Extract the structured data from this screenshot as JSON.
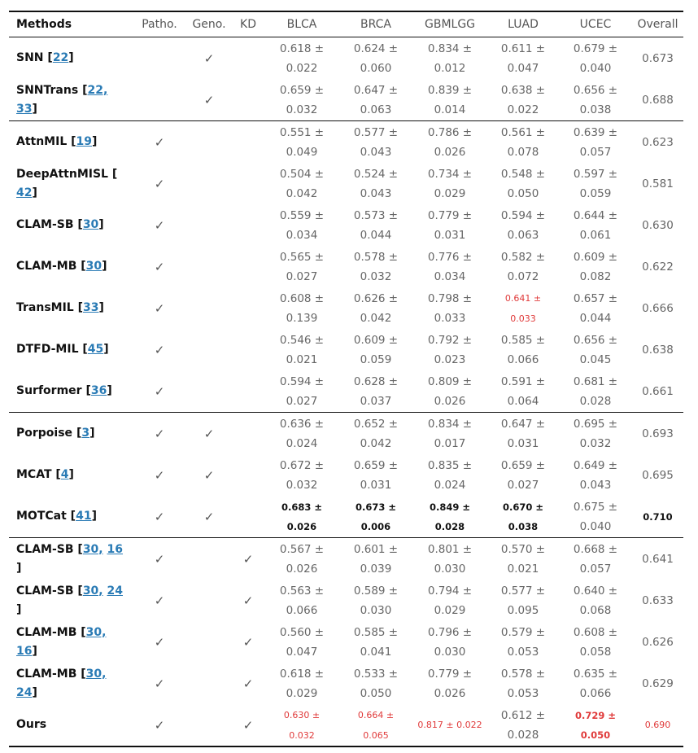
{
  "headers": [
    "Methods",
    "Patho.",
    "Geno.",
    "KD",
    "BLCA",
    "BRCA",
    "GBMLGG",
    "LUAD",
    "UCEC",
    "Overall"
  ],
  "check_mark": "✓",
  "rows": [
    {
      "name": "SNN",
      "refs": [
        "22"
      ],
      "cells": [
        "0.618 ±",
        "0.022",
        "0.624 ±",
        "0.060",
        "0.834 ±",
        "0.012",
        "0.611 ±",
        "0.047",
        "0.679 ±",
        "0.040"
      ],
      "overall": "0.673"
    },
    {
      "name": "SNNTrans",
      "refs": [
        "22,",
        "33"
      ],
      "cells": [
        "0.659 ±",
        "0.032",
        "0.647 ±",
        "0.063",
        "0.839 ±",
        "0.014",
        "0.638 ±",
        "0.022",
        "0.656 ±",
        "0.038"
      ],
      "overall": "0.688"
    },
    {
      "name": "AttnMIL",
      "refs": [
        "19"
      ],
      "cells": [
        "0.551 ±",
        "0.049",
        "0.577 ±",
        "0.043",
        "0.786 ±",
        "0.026",
        "0.561 ±",
        "0.078",
        "0.639 ±",
        "0.057"
      ],
      "overall": "0.623"
    },
    {
      "name": "DeepAttnMISL [",
      "refs": [
        "42"
      ],
      "cells": [
        "0.504 ±",
        "0.042",
        "0.524 ±",
        "0.043",
        "0.734 ±",
        "0.029",
        "0.548 ±",
        "0.050",
        "0.597 ±",
        "0.059"
      ],
      "overall": "0.581"
    },
    {
      "name": "CLAM-SB",
      "refs": [
        "30"
      ],
      "cells": [
        "0.559 ±",
        "0.034",
        "0.573 ±",
        "0.044",
        "0.779 ±",
        "0.031",
        "0.594 ±",
        "0.063",
        "0.644 ±",
        "0.061"
      ],
      "overall": "0.630"
    },
    {
      "name": "CLAM-MB",
      "refs": [
        "30"
      ],
      "cells": [
        "0.565 ±",
        "0.027",
        "0.578 ±",
        "0.032",
        "0.776 ±",
        "0.034",
        "0.582 ±",
        "0.072",
        "0.609 ±",
        "0.082"
      ],
      "overall": "0.622"
    },
    {
      "name": "TransMIL",
      "refs": [
        "33"
      ],
      "cells": [
        "0.608 ±",
        "0.139",
        "0.626 ±",
        "0.042",
        "0.798 ±",
        "0.033",
        "0.641 ±",
        "0.033",
        "0.657 ±",
        "0.044"
      ],
      "overall": "0.666"
    },
    {
      "name": "DTFD-MIL",
      "refs": [
        "45"
      ],
      "cells": [
        "0.546 ±",
        "0.021",
        "0.609 ±",
        "0.059",
        "0.792 ±",
        "0.023",
        "0.585 ±",
        "0.066",
        "0.656 ±",
        "0.045"
      ],
      "overall": "0.638"
    },
    {
      "name": "Surformer",
      "refs": [
        "36"
      ],
      "cells": [
        "0.594 ±",
        "0.027",
        "0.628 ±",
        "0.037",
        "0.809 ±",
        "0.026",
        "0.591 ±",
        "0.064",
        "0.681 ±",
        "0.028"
      ],
      "overall": "0.661"
    },
    {
      "name": "Porpoise",
      "refs": [
        "3"
      ],
      "cells": [
        "0.636 ±",
        "0.024",
        "0.652 ±",
        "0.042",
        "0.834 ±",
        "0.017",
        "0.647 ±",
        "0.031",
        "0.695 ±",
        "0.032"
      ],
      "overall": "0.693"
    },
    {
      "name": "MCAT",
      "refs": [
        "4"
      ],
      "cells": [
        "0.672 ±",
        "0.032",
        "0.659 ±",
        "0.031",
        "0.835 ±",
        "0.024",
        "0.659 ±",
        "0.027",
        "0.649 ±",
        "0.043"
      ],
      "overall": "0.695"
    },
    {
      "name": "MOTCat",
      "refs": [
        "41"
      ],
      "cells": [
        "0.683 ±",
        "0.026",
        "0.673 ±",
        "0.006",
        "0.849 ±",
        "0.028",
        "0.670 ±",
        "0.038",
        "0.675 ±",
        "0.040"
      ],
      "overall": "0.710"
    },
    {
      "name": "CLAM-SB",
      "refs": [
        "30,",
        "16"
      ],
      "cells": [
        "0.567 ±",
        "0.026",
        "0.601 ±",
        "0.039",
        "0.801 ±",
        "0.030",
        "0.570 ±",
        "0.021",
        "0.668 ±",
        "0.057"
      ],
      "overall": "0.641"
    },
    {
      "name": "CLAM-SB",
      "refs": [
        "30,",
        "24"
      ],
      "cells": [
        "0.563 ±",
        "0.066",
        "0.589 ±",
        "0.030",
        "0.794 ±",
        "0.029",
        "0.577 ±",
        "0.095",
        "0.640 ±",
        "0.068"
      ],
      "overall": "0.633"
    },
    {
      "name": "CLAM-MB",
      "refs": [
        "30,",
        "16"
      ],
      "cells": [
        "0.560 ±",
        "0.047",
        "0.585 ±",
        "0.041",
        "0.796 ±",
        "0.030",
        "0.579 ±",
        "0.053",
        "0.608 ±",
        "0.058"
      ],
      "overall": "0.626"
    },
    {
      "name": "CLAM-MB",
      "refs": [
        "30,",
        "24"
      ],
      "cells": [
        "0.618 ±",
        "0.029",
        "0.533 ±",
        "0.050",
        "0.779 ±",
        "0.026",
        "0.578 ±",
        "0.053",
        "0.635 ±",
        "0.066"
      ],
      "overall": "0.629"
    },
    {
      "name": "Ours",
      "refs": [],
      "cells": [
        "0.630 ±",
        "0.032",
        "0.664 ±",
        "0.065",
        "0.817 ± 0.022",
        "",
        "0.612 ±",
        "0.028",
        "0.729 ±",
        "0.050"
      ],
      "overall": "0.690"
    }
  ]
}
